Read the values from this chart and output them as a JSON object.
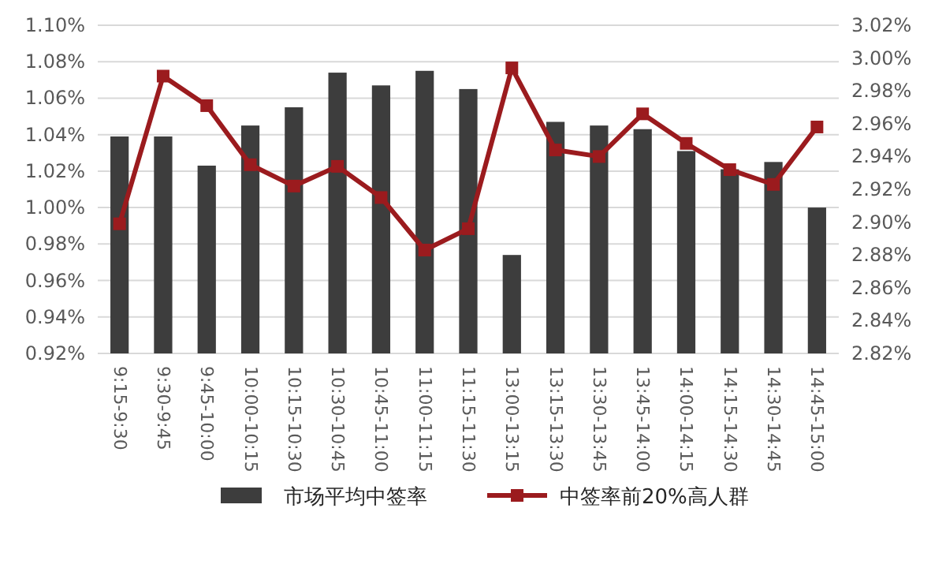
{
  "chart_data": {
    "type": "bar",
    "categories": [
      "9:15-9:30",
      "9:30-9:45",
      "9:45-10:00",
      "10:00-10:15",
      "10:15-10:30",
      "10:30-10:45",
      "10:45-11:00",
      "11:00-11:15",
      "11:15-11:30",
      "13:00-13:15",
      "13:15-13:30",
      "13:30-13:45",
      "13:45-14:00",
      "14:00-14:15",
      "14:15-14:30",
      "14:30-14:45",
      "14:45-15:00"
    ],
    "series": [
      {
        "name": "市场平均中签率",
        "color": "#3d3d3d",
        "values": [
          1.039,
          1.039,
          1.023,
          1.045,
          1.055,
          1.074,
          1.067,
          1.075,
          1.065,
          0.974,
          1.047,
          1.045,
          1.043,
          1.031,
          1.021,
          1.025,
          1.0
        ]
      },
      {
        "name": "中签率前20%高人群",
        "type": "line",
        "axis": "y2",
        "color": "#9b1b1e",
        "values": [
          2.899,
          2.989,
          2.971,
          2.935,
          2.922,
          2.934,
          2.915,
          2.883,
          2.896,
          2.994,
          2.944,
          2.94,
          2.966,
          2.948,
          2.932,
          2.923,
          2.958
        ]
      }
    ],
    "ylim": [
      0.92,
      1.1
    ],
    "yticks": [
      {
        "value": 0.92,
        "label": "0.92%"
      },
      {
        "value": 0.94,
        "label": "0.94%"
      },
      {
        "value": 0.96,
        "label": "0.96%"
      },
      {
        "value": 0.98,
        "label": "0.98%"
      },
      {
        "value": 1.0,
        "label": "1.00%"
      },
      {
        "value": 1.02,
        "label": "1.02%"
      },
      {
        "value": 1.04,
        "label": "1.04%"
      },
      {
        "value": 1.06,
        "label": "1.06%"
      },
      {
        "value": 1.08,
        "label": "1.08%"
      },
      {
        "value": 1.1,
        "label": "1.10%"
      }
    ],
    "y2lim": [
      2.82,
      3.02
    ],
    "y2ticks": [
      {
        "value": 2.82,
        "label": "2.82%"
      },
      {
        "value": 2.84,
        "label": "2.84%"
      },
      {
        "value": 2.86,
        "label": "2.86%"
      },
      {
        "value": 2.88,
        "label": "2.88%"
      },
      {
        "value": 2.9,
        "label": "2.90%"
      },
      {
        "value": 2.92,
        "label": "2.92%"
      },
      {
        "value": 2.94,
        "label": "2.94%"
      },
      {
        "value": 2.96,
        "label": "2.96%"
      },
      {
        "value": 2.98,
        "label": "2.98%"
      },
      {
        "value": 3.0,
        "label": "3.00%"
      },
      {
        "value": 3.02,
        "label": "3.02%"
      }
    ],
    "grid": "y",
    "legend": "bottom",
    "marker": "square",
    "line_style": "solid"
  }
}
